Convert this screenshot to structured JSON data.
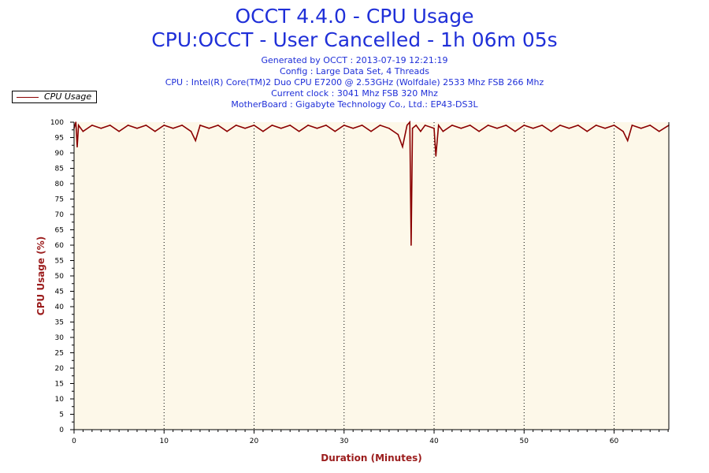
{
  "chart_data": {
    "type": "line",
    "title": "OCCT 4.4.0 - CPU Usage",
    "subtitle": "CPU:OCCT - User Cancelled - 1h 06m 05s",
    "info_lines": [
      "Generated by OCCT : 2013-07-19 12:21:19",
      "Config : Large Data Set, 4 Threads",
      "CPU : Intel(R) Core(TM)2 Duo CPU E7200 @ 2.53GHz (Wolfdale) 2533 Mhz FSB 266 Mhz",
      "Current clock : 3041 Mhz FSB 320 Mhz",
      "MotherBoard : Gigabyte Technology Co., Ltd.: EP43-DS3L"
    ],
    "xlabel": "Duration (Minutes)",
    "ylabel": "CPU Usage (%)",
    "xlim": [
      0,
      66.08
    ],
    "ylim": [
      0,
      100
    ],
    "x_ticks": [
      0,
      10,
      20,
      30,
      40,
      50,
      60
    ],
    "y_ticks": [
      0,
      5,
      10,
      15,
      20,
      25,
      30,
      35,
      40,
      45,
      50,
      55,
      60,
      65,
      70,
      75,
      80,
      85,
      90,
      95,
      100
    ],
    "grid": "vertical dotted at major x ticks",
    "legend": "top-left",
    "colors": {
      "line": "#8b0000",
      "plot_bg": "#fdf8e9",
      "title": "#1f2fd8",
      "axis_title": "#9b1c1c"
    },
    "series": [
      {
        "name": "CPU Usage",
        "x": [
          0,
          0.2,
          0.35,
          0.5,
          1,
          2,
          3,
          4,
          5,
          6,
          7,
          8,
          9,
          10,
          11,
          12,
          13,
          13.5,
          14,
          15,
          16,
          17,
          18,
          19,
          20,
          21,
          22,
          23,
          24,
          25,
          26,
          27,
          28,
          29,
          30,
          31,
          32,
          33,
          34,
          35,
          36,
          36.5,
          37,
          37.3,
          37.45,
          37.6,
          38,
          38.5,
          39,
          40,
          40.2,
          40.5,
          41,
          42,
          43,
          44,
          45,
          46,
          47,
          48,
          49,
          50,
          51,
          52,
          53,
          54,
          55,
          56,
          57,
          58,
          59,
          60,
          61,
          61.5,
          62,
          63,
          64,
          65,
          66.08
        ],
        "values": [
          98,
          100,
          92,
          99,
          97,
          99,
          98,
          99,
          97,
          99,
          98,
          99,
          97,
          99,
          98,
          99,
          97,
          94,
          99,
          98,
          99,
          97,
          99,
          98,
          99,
          97,
          99,
          98,
          99,
          97,
          99,
          98,
          99,
          97,
          99,
          98,
          99,
          97,
          99,
          98,
          96,
          92,
          99,
          100,
          60,
          98,
          99,
          97,
          99,
          98,
          89,
          99,
          97,
          99,
          98,
          99,
          97,
          99,
          98,
          99,
          97,
          99,
          98,
          99,
          97,
          99,
          98,
          99,
          97,
          99,
          98,
          99,
          97,
          94,
          99,
          98,
          99,
          97,
          99
        ]
      }
    ]
  }
}
